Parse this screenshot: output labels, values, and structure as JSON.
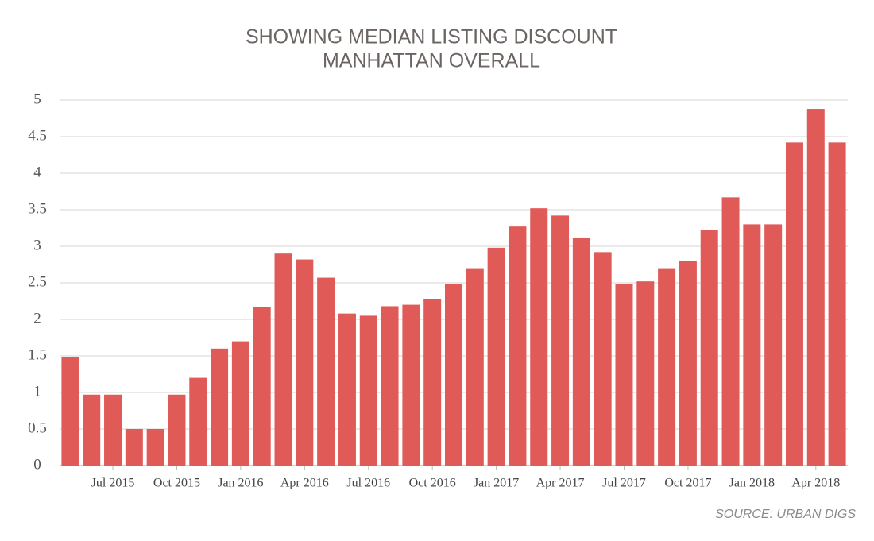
{
  "chart_data": {
    "type": "bar",
    "title": "SHOWING MEDIAN LISTING DISCOUNT",
    "subtitle": "MANHATTAN OVERALL",
    "source": "SOURCE: URBAN DIGS",
    "categories": [
      null,
      null,
      "Jul 2015",
      null,
      null,
      "Oct 2015",
      null,
      null,
      "Jan 2016",
      null,
      null,
      "Apr 2016",
      null,
      null,
      "Jul 2016",
      null,
      null,
      "Oct 2016",
      null,
      null,
      "Jan 2017",
      null,
      null,
      "Apr 2017",
      null,
      null,
      "Jul 2017",
      null,
      null,
      "Oct 2017",
      null,
      null,
      "Jan 2018",
      null,
      null,
      "Apr 2018",
      null
    ],
    "values": [
      1.48,
      0.97,
      0.97,
      0.5,
      0.5,
      0.97,
      1.2,
      1.6,
      1.7,
      2.17,
      2.9,
      2.82,
      2.57,
      2.08,
      2.05,
      2.18,
      2.2,
      2.28,
      2.48,
      2.7,
      2.98,
      3.27,
      3.52,
      3.42,
      3.12,
      2.92,
      2.48,
      2.52,
      2.7,
      2.8,
      3.22,
      3.67,
      3.3,
      3.3,
      4.42,
      4.88,
      4.42
    ],
    "color": "#e05a58",
    "ylim": [
      0,
      5
    ],
    "yticks": [
      0,
      0.5,
      1,
      1.5,
      2,
      2.5,
      3,
      3.5,
      4,
      4.5,
      5
    ],
    "grid": true
  }
}
